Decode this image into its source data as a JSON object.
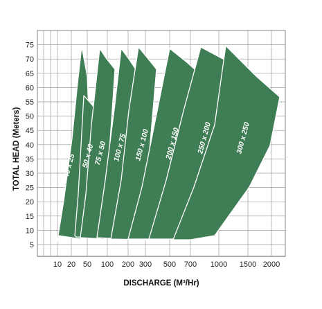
{
  "chart_data": {
    "type": "area",
    "title": "",
    "xlabel": "DISCHARGE  (M³/Hr)",
    "ylabel": "TOTAL HEAD (Meters)",
    "x_tick_labels": [
      "10",
      "20",
      "50",
      "100",
      "200",
      "300",
      "500",
      "700",
      "1000",
      "1500",
      "2000"
    ],
    "y_tick_labels": [
      "5",
      "10",
      "15",
      "20",
      "25",
      "30",
      "35",
      "40",
      "45",
      "50",
      "55",
      "60",
      "65",
      "70",
      "75"
    ],
    "ylim": [
      0,
      80
    ],
    "grid": true,
    "fill_color": "#3f7d55",
    "outline_color": "#ffffff",
    "series": [
      {
        "name": "40 x 25"
      },
      {
        "name": "50 x 40"
      },
      {
        "name": "75 x 50"
      },
      {
        "name": "100 x 75"
      },
      {
        "name": "150 x 100"
      },
      {
        "name": "200 x 150"
      },
      {
        "name": "250 x 200"
      },
      {
        "name": "300 x 250"
      }
    ]
  }
}
